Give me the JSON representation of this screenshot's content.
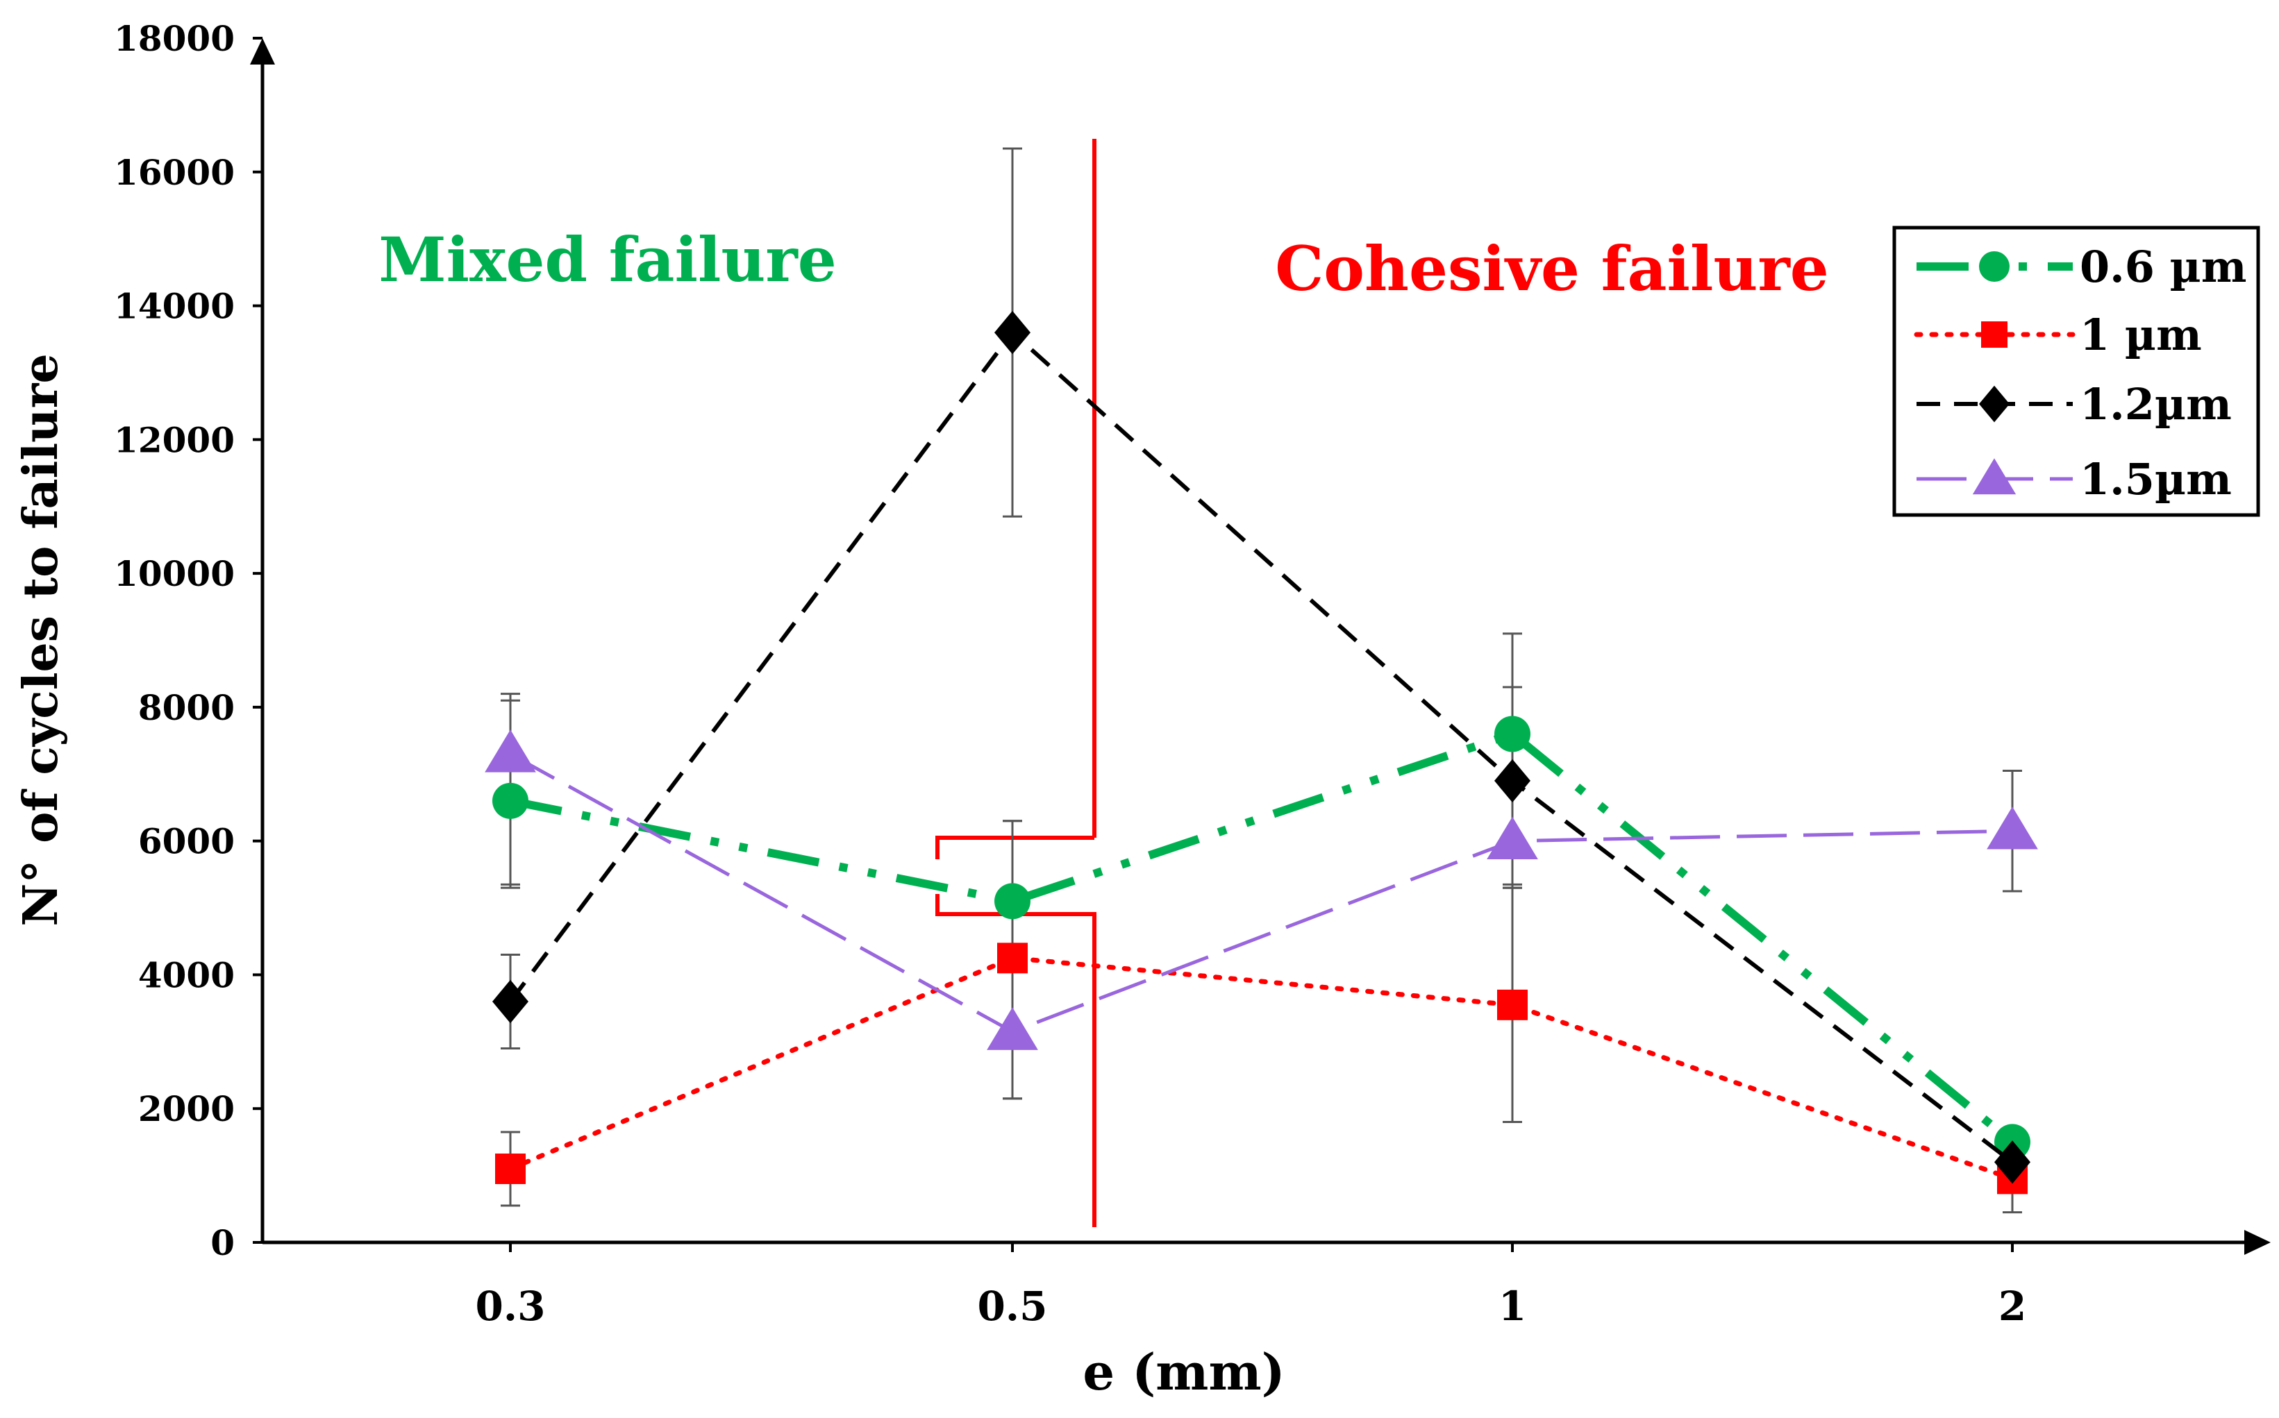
{
  "chart_data": {
    "type": "line",
    "title": "",
    "xlabel": "e (mm)",
    "ylabel": "N° of cycles to failure",
    "categories": [
      "0.3",
      "0.5",
      "1",
      "2"
    ],
    "ylim": [
      0,
      18000
    ],
    "yticks": [
      0,
      2000,
      4000,
      6000,
      8000,
      10000,
      12000,
      14000,
      16000,
      18000
    ],
    "grid": false,
    "legend_position": "top-right",
    "series": [
      {
        "name": "0.6 µm",
        "values": [
          6600,
          5100,
          7600,
          1500
        ],
        "err_low": [
          1300,
          900,
          2300,
          200
        ],
        "err_high": [
          1500,
          1200,
          1500,
          200
        ],
        "color": "#00b050",
        "marker": "circle",
        "dash": "long-dash-dot-dot"
      },
      {
        "name": "1 µm",
        "values": [
          1100,
          4250,
          3550,
          950
        ],
        "err_low": [
          550,
          2100,
          1750,
          500
        ],
        "err_high": [
          550,
          2050,
          1800,
          500
        ],
        "color": "#ff0000",
        "marker": "square",
        "dash": "dotted"
      },
      {
        "name": "1.2µm",
        "values": [
          3600,
          13600,
          6900,
          1200
        ],
        "err_low": [
          700,
          2750,
          1600,
          300
        ],
        "err_high": [
          700,
          2750,
          1400,
          300
        ],
        "color": "#000000",
        "marker": "diamond",
        "dash": "dashed"
      },
      {
        "name": "1.5µm",
        "values": [
          7300,
          3150,
          6000,
          6150
        ],
        "err_low": [
          1950,
          1000,
          700,
          900
        ],
        "err_high": [
          900,
          1000,
          2300,
          900
        ],
        "color": "#9966dd",
        "marker": "triangle",
        "dash": "long-dash"
      }
    ],
    "annotations": [
      {
        "text": "Mixed failure",
        "color": "#00b050"
      },
      {
        "text": "Cohesive failure",
        "color": "#ff0000"
      }
    ],
    "boundary_color": "#ff0000"
  }
}
